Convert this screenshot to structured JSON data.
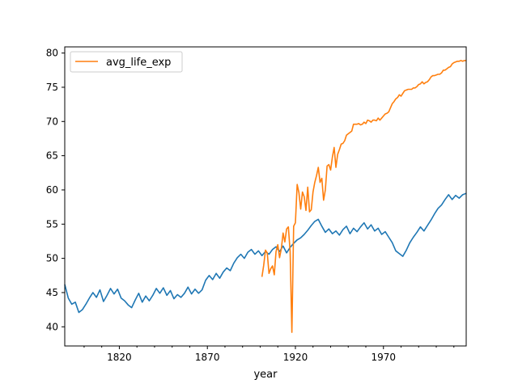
{
  "chart_data": {
    "type": "line",
    "title": "",
    "xlabel": "year",
    "ylabel": "",
    "xlim": [
      1789,
      2017
    ],
    "ylim": [
      37.2,
      80.9
    ],
    "xticks": [
      1820,
      1870,
      1920,
      1970
    ],
    "yticks": [
      40,
      45,
      50,
      55,
      60,
      65,
      70,
      75,
      80
    ],
    "grid": false,
    "legend": {
      "placement": "upper-left",
      "entries": [
        "avg_life_exp"
      ]
    },
    "series": [
      {
        "name": "",
        "color": "#1f77b4",
        "values": [
          [
            1789,
            46.2
          ],
          [
            1791,
            44.2
          ],
          [
            1793,
            43.3
          ],
          [
            1795,
            43.6
          ],
          [
            1797,
            42.1
          ],
          [
            1799,
            42.5
          ],
          [
            1801,
            43.3
          ],
          [
            1803,
            44.2
          ],
          [
            1805,
            45.0
          ],
          [
            1807,
            44.3
          ],
          [
            1809,
            45.4
          ],
          [
            1811,
            43.7
          ],
          [
            1813,
            44.6
          ],
          [
            1815,
            45.6
          ],
          [
            1817,
            44.8
          ],
          [
            1819,
            45.5
          ],
          [
            1821,
            44.2
          ],
          [
            1823,
            43.8
          ],
          [
            1825,
            43.2
          ],
          [
            1827,
            42.8
          ],
          [
            1829,
            43.9
          ],
          [
            1831,
            44.9
          ],
          [
            1833,
            43.6
          ],
          [
            1835,
            44.5
          ],
          [
            1837,
            43.8
          ],
          [
            1839,
            44.6
          ],
          [
            1841,
            45.6
          ],
          [
            1843,
            44.9
          ],
          [
            1845,
            45.7
          ],
          [
            1847,
            44.6
          ],
          [
            1849,
            45.3
          ],
          [
            1851,
            44.1
          ],
          [
            1853,
            44.7
          ],
          [
            1855,
            44.3
          ],
          [
            1857,
            44.9
          ],
          [
            1859,
            45.8
          ],
          [
            1861,
            44.8
          ],
          [
            1863,
            45.5
          ],
          [
            1865,
            44.9
          ],
          [
            1867,
            45.4
          ],
          [
            1869,
            46.8
          ],
          [
            1871,
            47.5
          ],
          [
            1873,
            46.9
          ],
          [
            1875,
            47.8
          ],
          [
            1877,
            47.1
          ],
          [
            1879,
            48.0
          ],
          [
            1881,
            48.6
          ],
          [
            1883,
            48.2
          ],
          [
            1885,
            49.3
          ],
          [
            1887,
            50.1
          ],
          [
            1889,
            50.6
          ],
          [
            1891,
            50.0
          ],
          [
            1893,
            50.9
          ],
          [
            1895,
            51.3
          ],
          [
            1897,
            50.6
          ],
          [
            1899,
            51.1
          ],
          [
            1901,
            50.4
          ],
          [
            1903,
            51.0
          ],
          [
            1905,
            50.6
          ],
          [
            1907,
            51.3
          ],
          [
            1909,
            51.7
          ],
          [
            1911,
            51.0
          ],
          [
            1913,
            51.8
          ],
          [
            1915,
            50.8
          ],
          [
            1917,
            51.6
          ],
          [
            1919,
            52.2
          ],
          [
            1921,
            52.7
          ],
          [
            1923,
            53.0
          ],
          [
            1925,
            53.5
          ],
          [
            1927,
            54.1
          ],
          [
            1929,
            54.8
          ],
          [
            1931,
            55.4
          ],
          [
            1933,
            55.7
          ],
          [
            1935,
            54.7
          ],
          [
            1937,
            53.8
          ],
          [
            1939,
            54.3
          ],
          [
            1941,
            53.6
          ],
          [
            1943,
            54.0
          ],
          [
            1945,
            53.4
          ],
          [
            1947,
            54.2
          ],
          [
            1949,
            54.7
          ],
          [
            1951,
            53.6
          ],
          [
            1953,
            54.4
          ],
          [
            1955,
            53.9
          ],
          [
            1957,
            54.6
          ],
          [
            1959,
            55.2
          ],
          [
            1961,
            54.3
          ],
          [
            1963,
            54.9
          ],
          [
            1965,
            54.0
          ],
          [
            1967,
            54.4
          ],
          [
            1969,
            53.5
          ],
          [
            1971,
            53.9
          ],
          [
            1973,
            53.1
          ],
          [
            1975,
            52.3
          ],
          [
            1977,
            51.1
          ],
          [
            1979,
            50.7
          ],
          [
            1981,
            50.3
          ],
          [
            1983,
            51.2
          ],
          [
            1985,
            52.3
          ],
          [
            1987,
            53.1
          ],
          [
            1989,
            53.8
          ],
          [
            1991,
            54.6
          ],
          [
            1993,
            54.0
          ],
          [
            1995,
            54.8
          ],
          [
            1997,
            55.6
          ],
          [
            1999,
            56.5
          ],
          [
            2001,
            57.3
          ],
          [
            2003,
            57.8
          ],
          [
            2005,
            58.6
          ],
          [
            2007,
            59.3
          ],
          [
            2009,
            58.6
          ],
          [
            2011,
            59.2
          ],
          [
            2013,
            58.8
          ],
          [
            2015,
            59.3
          ],
          [
            2017,
            59.5
          ]
        ]
      },
      {
        "name": "avg_life_exp",
        "color": "#ff7f0e",
        "values": [
          [
            1901,
            47.3
          ],
          [
            1902,
            49.0
          ],
          [
            1903,
            51.2
          ],
          [
            1904,
            50.8
          ],
          [
            1905,
            47.8
          ],
          [
            1906,
            48.5
          ],
          [
            1907,
            48.9
          ],
          [
            1908,
            47.6
          ],
          [
            1909,
            51.0
          ],
          [
            1910,
            52.0
          ],
          [
            1911,
            50.1
          ],
          [
            1912,
            51.4
          ],
          [
            1913,
            53.7
          ],
          [
            1914,
            52.4
          ],
          [
            1915,
            54.3
          ],
          [
            1916,
            54.6
          ],
          [
            1917,
            51.0
          ],
          [
            1918,
            39.2
          ],
          [
            1919,
            54.7
          ],
          [
            1920,
            55.2
          ],
          [
            1921,
            60.8
          ],
          [
            1922,
            59.6
          ],
          [
            1923,
            57.2
          ],
          [
            1924,
            59.7
          ],
          [
            1925,
            59.0
          ],
          [
            1926,
            57.0
          ],
          [
            1927,
            60.4
          ],
          [
            1928,
            56.8
          ],
          [
            1929,
            57.1
          ],
          [
            1930,
            59.7
          ],
          [
            1931,
            61.1
          ],
          [
            1932,
            62.1
          ],
          [
            1933,
            63.3
          ],
          [
            1934,
            61.1
          ],
          [
            1935,
            61.7
          ],
          [
            1936,
            58.5
          ],
          [
            1937,
            60.0
          ],
          [
            1938,
            63.5
          ],
          [
            1939,
            63.7
          ],
          [
            1940,
            62.9
          ],
          [
            1941,
            64.8
          ],
          [
            1942,
            66.2
          ],
          [
            1943,
            63.3
          ],
          [
            1944,
            65.2
          ],
          [
            1945,
            65.9
          ],
          [
            1946,
            66.7
          ],
          [
            1947,
            66.8
          ],
          [
            1948,
            67.2
          ],
          [
            1949,
            68.0
          ],
          [
            1950,
            68.2
          ],
          [
            1951,
            68.4
          ],
          [
            1952,
            68.6
          ],
          [
            1953,
            69.6
          ],
          [
            1954,
            69.6
          ],
          [
            1955,
            69.6
          ],
          [
            1956,
            69.7
          ],
          [
            1957,
            69.5
          ],
          [
            1958,
            69.6
          ],
          [
            1959,
            69.9
          ],
          [
            1960,
            69.7
          ],
          [
            1961,
            70.2
          ],
          [
            1962,
            70.1
          ],
          [
            1963,
            69.9
          ],
          [
            1964,
            70.2
          ],
          [
            1965,
            70.2
          ],
          [
            1966,
            70.1
          ],
          [
            1967,
            70.5
          ],
          [
            1968,
            70.2
          ],
          [
            1969,
            70.5
          ],
          [
            1970,
            70.8
          ],
          [
            1971,
            71.1
          ],
          [
            1972,
            71.2
          ],
          [
            1973,
            71.4
          ],
          [
            1974,
            72.0
          ],
          [
            1975,
            72.6
          ],
          [
            1976,
            72.9
          ],
          [
            1977,
            73.3
          ],
          [
            1978,
            73.5
          ],
          [
            1979,
            73.9
          ],
          [
            1980,
            73.7
          ],
          [
            1981,
            74.1
          ],
          [
            1982,
            74.5
          ],
          [
            1983,
            74.6
          ],
          [
            1984,
            74.7
          ],
          [
            1985,
            74.7
          ],
          [
            1986,
            74.7
          ],
          [
            1987,
            74.9
          ],
          [
            1988,
            74.9
          ],
          [
            1989,
            75.1
          ],
          [
            1990,
            75.4
          ],
          [
            1991,
            75.5
          ],
          [
            1992,
            75.8
          ],
          [
            1993,
            75.5
          ],
          [
            1994,
            75.7
          ],
          [
            1995,
            75.8
          ],
          [
            1996,
            76.1
          ],
          [
            1997,
            76.5
          ],
          [
            1998,
            76.7
          ],
          [
            1999,
            76.7
          ],
          [
            2000,
            76.8
          ],
          [
            2001,
            76.9
          ],
          [
            2002,
            76.9
          ],
          [
            2003,
            77.1
          ],
          [
            2004,
            77.5
          ],
          [
            2005,
            77.5
          ],
          [
            2006,
            77.7
          ],
          [
            2007,
            77.9
          ],
          [
            2008,
            78.0
          ],
          [
            2009,
            78.4
          ],
          [
            2010,
            78.6
          ],
          [
            2011,
            78.7
          ],
          [
            2012,
            78.8
          ],
          [
            2013,
            78.8
          ],
          [
            2014,
            78.9
          ],
          [
            2015,
            78.8
          ],
          [
            2016,
            78.9
          ],
          [
            2017,
            78.9
          ]
        ]
      }
    ]
  }
}
